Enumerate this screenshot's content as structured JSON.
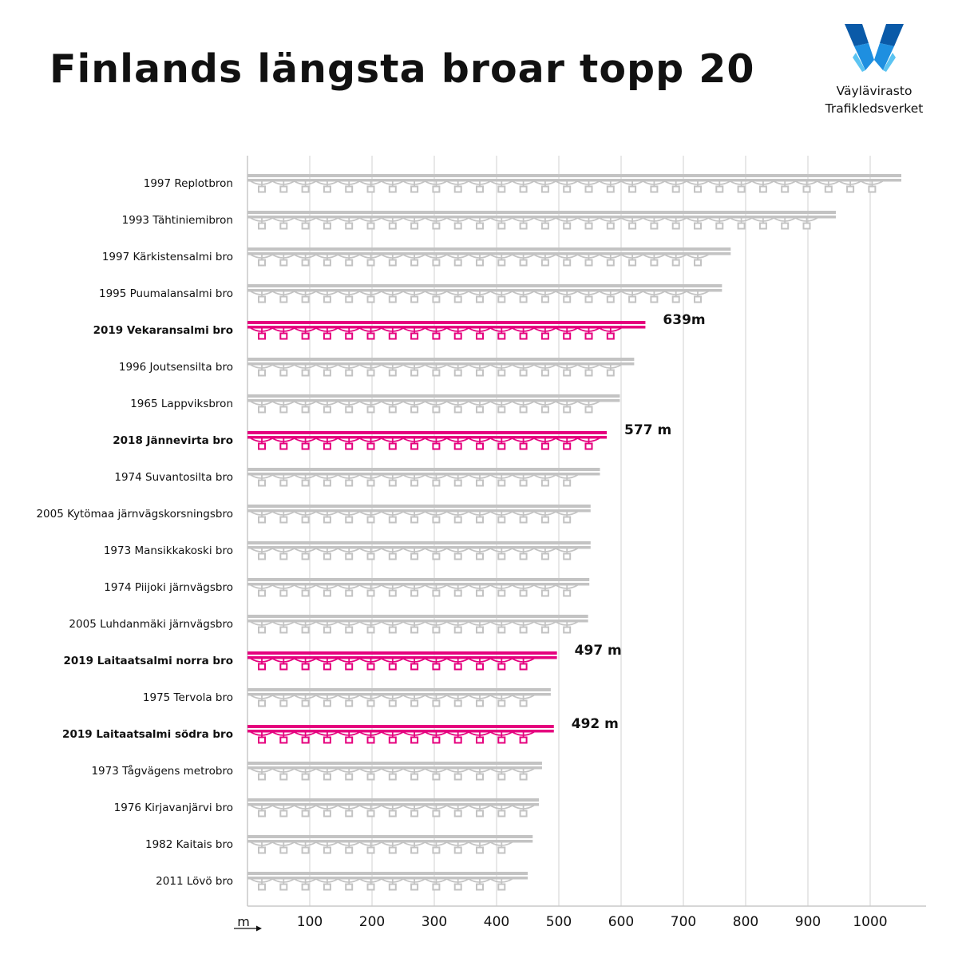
{
  "title": "Finlands längsta broar topp 20",
  "logo": {
    "line1": "Väylävirasto",
    "line2": "Trafikledsverket",
    "colors": [
      "#0a5aa8",
      "#1e8fe0",
      "#5cc4f2"
    ]
  },
  "colors": {
    "default_bridge": "#c3c3c3",
    "highlight_bridge": "#e5007e",
    "grid": "#d9d9d9",
    "text": "#111111"
  },
  "chart_data": {
    "type": "bar",
    "orientation": "horizontal",
    "title": "Finlands längsta broar topp 20",
    "x_unit_label": "m",
    "xlim": [
      0,
      1090
    ],
    "x_ticks": [
      100,
      200,
      300,
      400,
      500,
      600,
      700,
      800,
      900,
      1000
    ],
    "grid": true,
    "categories": [
      "1997 Replotbron",
      "1993 Tähtiniemibron",
      "1997 Kärkistensalmi bro",
      "1995 Puumalansalmi bro",
      "2019 Vekaransalmi bro",
      "1996 Joutsensilta bro",
      "1965 Lappviksbron",
      "2018 Jännevirta bro",
      "1974 Suvantosilta bro",
      "2005 Kytömaa järnvägskorsningsbro",
      "1973 Mansikkakoski bro",
      "1974 Piijoki järnvägsbro",
      "2005 Luhdanmäki järnvägsbro",
      "2019 Laitaatsalmi norra bro",
      "1975 Tervola bro",
      "2019 Laitaatsalmi södra bro",
      "1973 Tågvägens metrobro",
      "1976 Kirjavanjärvi bro",
      "1982 Kaitais bro",
      "2011 Lövö bro"
    ],
    "values": [
      1050,
      945,
      776,
      762,
      639,
      621,
      598,
      577,
      566,
      551,
      551,
      549,
      547,
      497,
      487,
      492,
      473,
      468,
      458,
      450
    ],
    "highlighted": [
      false,
      false,
      false,
      false,
      true,
      false,
      false,
      true,
      false,
      false,
      false,
      false,
      false,
      true,
      false,
      true,
      false,
      false,
      false,
      false
    ],
    "value_labels": [
      "",
      "",
      "",
      "",
      "639m",
      "",
      "",
      "577 m",
      "",
      "",
      "",
      "",
      "",
      "497 m",
      "",
      "492 m",
      "",
      "",
      "",
      ""
    ]
  }
}
